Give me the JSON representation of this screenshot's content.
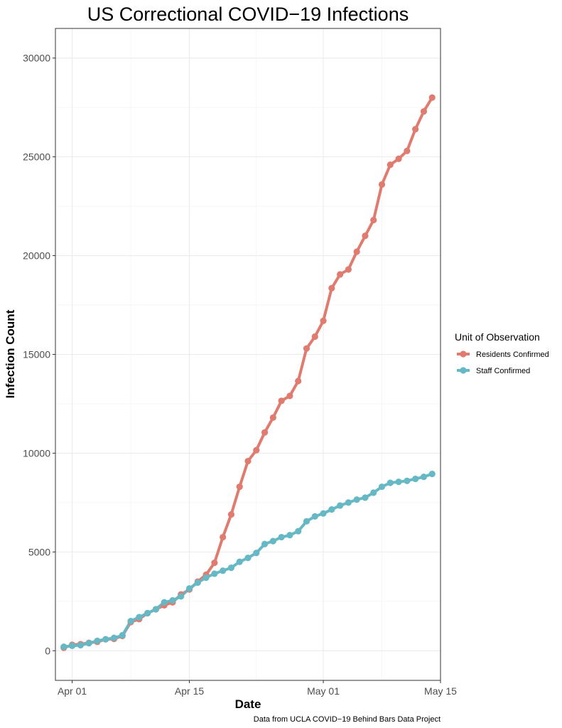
{
  "chart_data": {
    "type": "line",
    "title": "US Correctional COVID−19 Infections",
    "xlabel": "Date",
    "ylabel": "Infection Count",
    "caption": "Data from UCLA COVID−19 Behind Bars Data Project",
    "legend_title": "Unit of Observation",
    "legend_position": "right",
    "grid": true,
    "x_start": "2020-03-31",
    "xlim": [
      "2020-03-30",
      "2020-05-15"
    ],
    "x_ticks": [
      {
        "date": "2020-04-01",
        "label": "Apr 01"
      },
      {
        "date": "2020-04-15",
        "label": "Apr 15"
      },
      {
        "date": "2020-05-01",
        "label": "May 01"
      },
      {
        "date": "2020-05-15",
        "label": "May 15"
      }
    ],
    "ylim": [
      -1500,
      31500
    ],
    "y_ticks": [
      0,
      5000,
      10000,
      15000,
      20000,
      25000,
      30000
    ],
    "series": [
      {
        "name": "Residents Confirmed",
        "color": "#E07B70",
        "values": [
          150,
          300,
          330,
          400,
          450,
          580,
          600,
          750,
          1450,
          1600,
          1900,
          2100,
          2300,
          2450,
          2850,
          3100,
          3500,
          3850,
          4450,
          5750,
          6900,
          8300,
          9600,
          10150,
          11050,
          11800,
          12650,
          12900,
          13650,
          15300,
          15900,
          16700,
          18350,
          19050,
          19300,
          20200,
          21000,
          21800,
          23600,
          24600,
          24900,
          25300,
          26400,
          27300,
          28000
        ]
      },
      {
        "name": "Staff Confirmed",
        "color": "#66B9C4",
        "values": [
          200,
          250,
          280,
          380,
          500,
          580,
          650,
          780,
          1500,
          1700,
          1900,
          2100,
          2450,
          2550,
          2750,
          3150,
          3450,
          3700,
          3900,
          4050,
          4200,
          4500,
          4700,
          4950,
          5400,
          5550,
          5750,
          5850,
          6050,
          6550,
          6800,
          6950,
          7150,
          7350,
          7500,
          7650,
          7750,
          8000,
          8300,
          8500,
          8550,
          8600,
          8700,
          8800,
          8950
        ]
      }
    ]
  }
}
